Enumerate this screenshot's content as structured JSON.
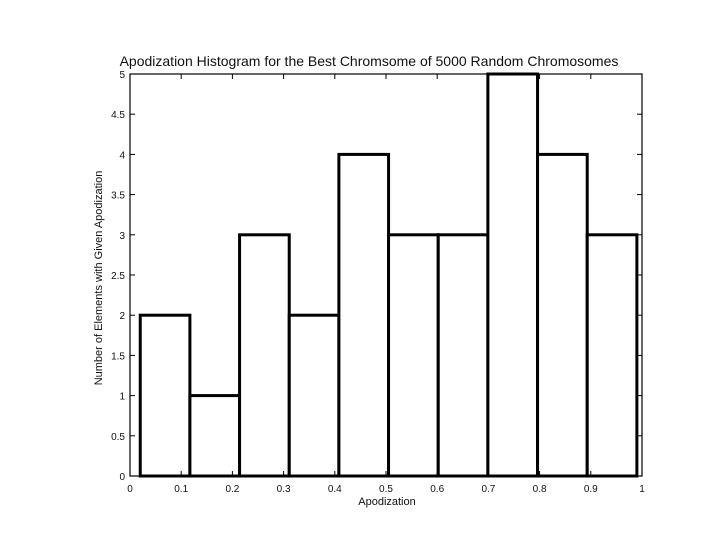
{
  "chart_data": {
    "type": "bar",
    "title": "Apodization Histogram for the Best Chromsome of 5000 Random Chromosomes",
    "xlabel": "Apodization",
    "ylabel": "Number of Elements with Given Apodization",
    "bin_edges": [
      0.02,
      0.117,
      0.214,
      0.311,
      0.408,
      0.505,
      0.602,
      0.699,
      0.796,
      0.893,
      0.99
    ],
    "values": [
      2,
      1,
      3,
      2,
      4,
      3,
      3,
      5,
      4,
      3
    ],
    "xlim": [
      0,
      1
    ],
    "ylim": [
      0,
      5
    ],
    "xticks": [
      "0",
      "0.1",
      "0.2",
      "0.3",
      "0.4",
      "0.5",
      "0.6",
      "0.7",
      "0.8",
      "0.9",
      "1"
    ],
    "yticks": [
      "0",
      "0.5",
      "1",
      "1.5",
      "2",
      "2.5",
      "3",
      "3.5",
      "4",
      "4.5",
      "5"
    ],
    "grid": false,
    "colors": {
      "bar_fill": "#ffffff",
      "bar_edge": "#000000",
      "axes": "#000000"
    }
  }
}
